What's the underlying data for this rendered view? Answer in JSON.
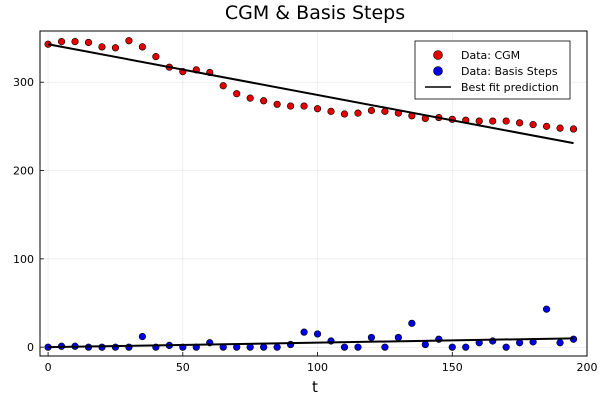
{
  "chart_data": {
    "type": "scatter",
    "title": "CGM & Basis Steps",
    "xlabel": "t",
    "ylabel": "",
    "xlim": [
      -3,
      200
    ],
    "ylim": [
      -10,
      358
    ],
    "xticks": [
      0,
      50,
      100,
      150,
      200
    ],
    "yticks": [
      0,
      100,
      200,
      300
    ],
    "grid": true,
    "legend_position": "top-right",
    "series": [
      {
        "name": "Data: CGM",
        "kind": "scatter",
        "color": "#e40000",
        "x": [
          0,
          5,
          10,
          15,
          20,
          25,
          30,
          35,
          40,
          45,
          50,
          55,
          60,
          65,
          70,
          75,
          80,
          85,
          90,
          95,
          100,
          105,
          110,
          115,
          120,
          125,
          130,
          135,
          140,
          145,
          150,
          155,
          160,
          165,
          170,
          175,
          180,
          185,
          190,
          195
        ],
        "y": [
          343,
          346,
          346,
          345,
          340,
          339,
          347,
          340,
          329,
          317,
          312,
          314,
          311,
          296,
          287,
          282,
          279,
          275,
          273,
          273,
          270,
          267,
          264,
          265,
          268,
          267,
          265,
          262,
          259,
          260,
          258,
          257,
          256,
          256,
          256,
          254,
          252,
          250,
          248,
          247
        ]
      },
      {
        "name": "Data: Basis Steps",
        "kind": "scatter",
        "color": "#0000e4",
        "x": [
          0,
          5,
          10,
          15,
          20,
          25,
          30,
          35,
          40,
          45,
          50,
          55,
          60,
          65,
          70,
          75,
          80,
          85,
          90,
          95,
          100,
          105,
          110,
          115,
          120,
          125,
          130,
          135,
          140,
          145,
          150,
          155,
          160,
          165,
          170,
          175,
          180,
          185,
          190,
          195
        ],
        "y": [
          0,
          1,
          1,
          0,
          0,
          0,
          0,
          12,
          0,
          2,
          0,
          0,
          5,
          0,
          0,
          0,
          0,
          0,
          3,
          17,
          15,
          7,
          0,
          0,
          11,
          0,
          11,
          27,
          3,
          9,
          0,
          0,
          5,
          7,
          0,
          5,
          6,
          43,
          5,
          9
        ]
      },
      {
        "name": "Best fit prediction",
        "kind": "line",
        "color": "#000000",
        "segments": [
          {
            "x": [
              0,
              195
            ],
            "y": [
              343,
              231
            ]
          },
          {
            "x": [
              0,
              195
            ],
            "y": [
              0,
              10
            ]
          }
        ]
      }
    ]
  }
}
